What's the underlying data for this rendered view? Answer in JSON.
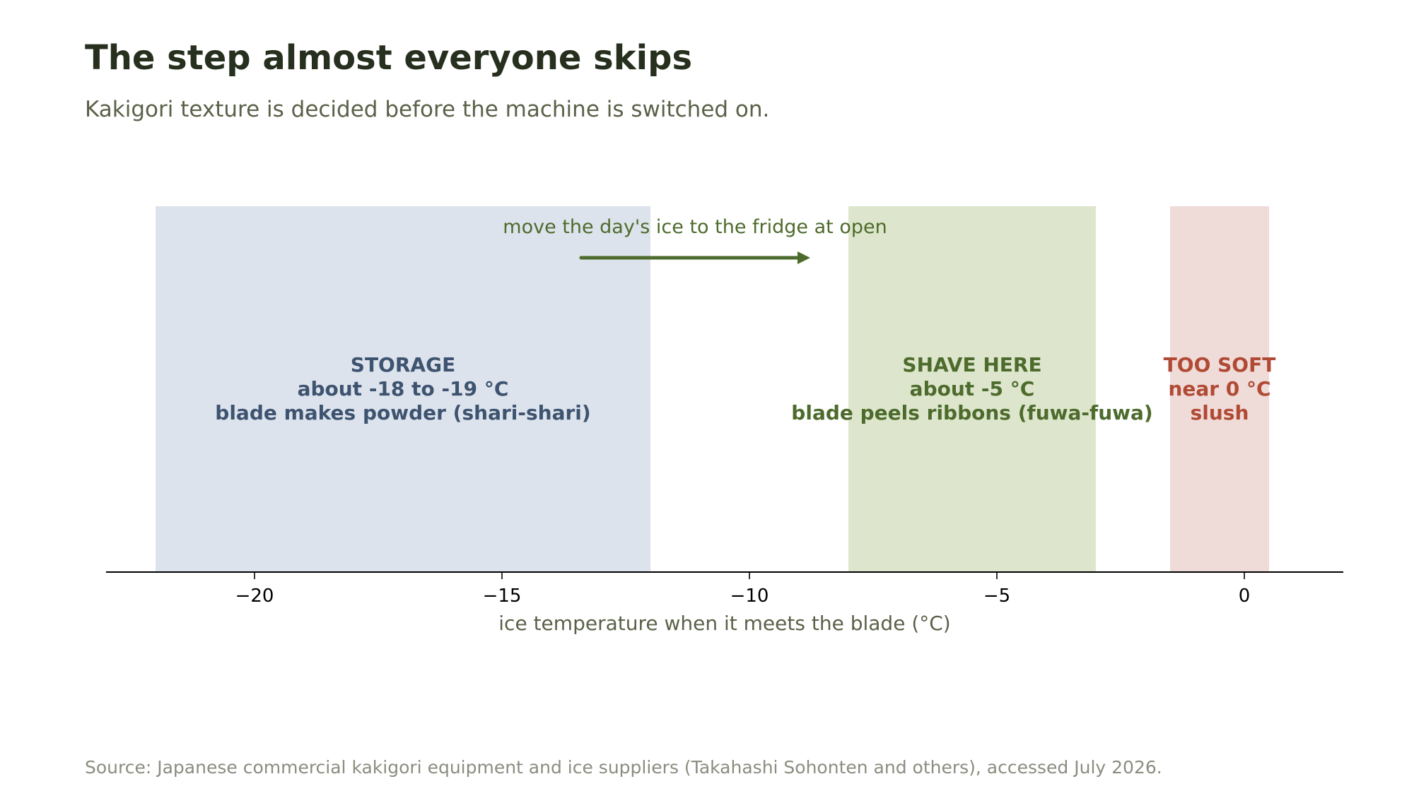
{
  "header": {
    "title": "The step almost everyone skips",
    "subtitle": "Kakigori texture is decided before the machine is switched on."
  },
  "footer": {
    "source": "Source: Japanese commercial kakigori equipment and ice suppliers (Takahashi Sohonten and others), accessed July 2026."
  },
  "colors": {
    "title": "#27301e",
    "subtitle": "#5a6148",
    "source": "#8a8d80",
    "axis": "#000000",
    "storage_fill": "#dde3ec",
    "storage_text": "#3d5370",
    "shave_fill": "#dde6cc",
    "shave_text": "#4d6b2c",
    "soft_fill": "#efdbd7",
    "soft_text": "#b04a35",
    "arrow": "#4d6b2c"
  },
  "chart_data": {
    "type": "range-bands",
    "title": "The step almost everyone skips",
    "subtitle": "Kakigori texture is decided before the machine is switched on.",
    "xlabel": "ice temperature when it meets the blade (°C)",
    "ylabel": "",
    "xlim": [
      -23,
      2
    ],
    "xticks": [
      -20,
      -15,
      -10,
      -5,
      0
    ],
    "xtick_labels": [
      "−20",
      "−15",
      "−10",
      "−5",
      "0"
    ],
    "grid": false,
    "zones": [
      {
        "id": "storage",
        "x_start": -22,
        "x_end": -12,
        "lines": [
          "STORAGE",
          "about -18 to -19 °C",
          "blade makes powder (shari-shari)"
        ]
      },
      {
        "id": "shave",
        "x_start": -8,
        "x_end": -3,
        "lines": [
          "SHAVE HERE",
          "about -5 °C",
          "blade peels ribbons (fuwa-fuwa)"
        ]
      },
      {
        "id": "soft",
        "x_start": -1.5,
        "x_end": 0.5,
        "lines": [
          "TOO SOFT",
          "near 0 °C",
          "slush"
        ]
      }
    ],
    "annotation": {
      "text": "move the day's ice to the fridge at open",
      "x_from": -13.4,
      "x_to": -8.8
    }
  }
}
